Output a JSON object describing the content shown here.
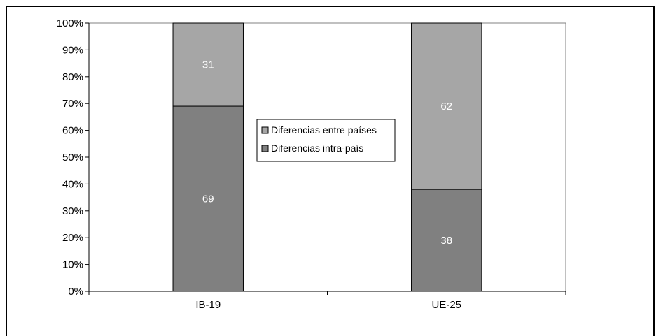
{
  "chart_data": {
    "type": "bar",
    "stacked": true,
    "categories": [
      "IB-19",
      "UE-25"
    ],
    "series": [
      {
        "name": "Diferencias intra-país",
        "values": [
          69,
          38
        ],
        "color": "#808080"
      },
      {
        "name": "Diferencias entre países",
        "values": [
          31,
          62
        ],
        "color": "#a6a6a6"
      }
    ],
    "ylim": [
      0,
      100
    ],
    "yticks": [
      "0%",
      "10%",
      "20%",
      "30%",
      "40%",
      "50%",
      "60%",
      "70%",
      "80%",
      "90%",
      "100%"
    ],
    "grid": false,
    "legend": {
      "placement": "center",
      "entries": [
        "Diferencias entre países",
        "Diferencias intra-país"
      ]
    }
  }
}
